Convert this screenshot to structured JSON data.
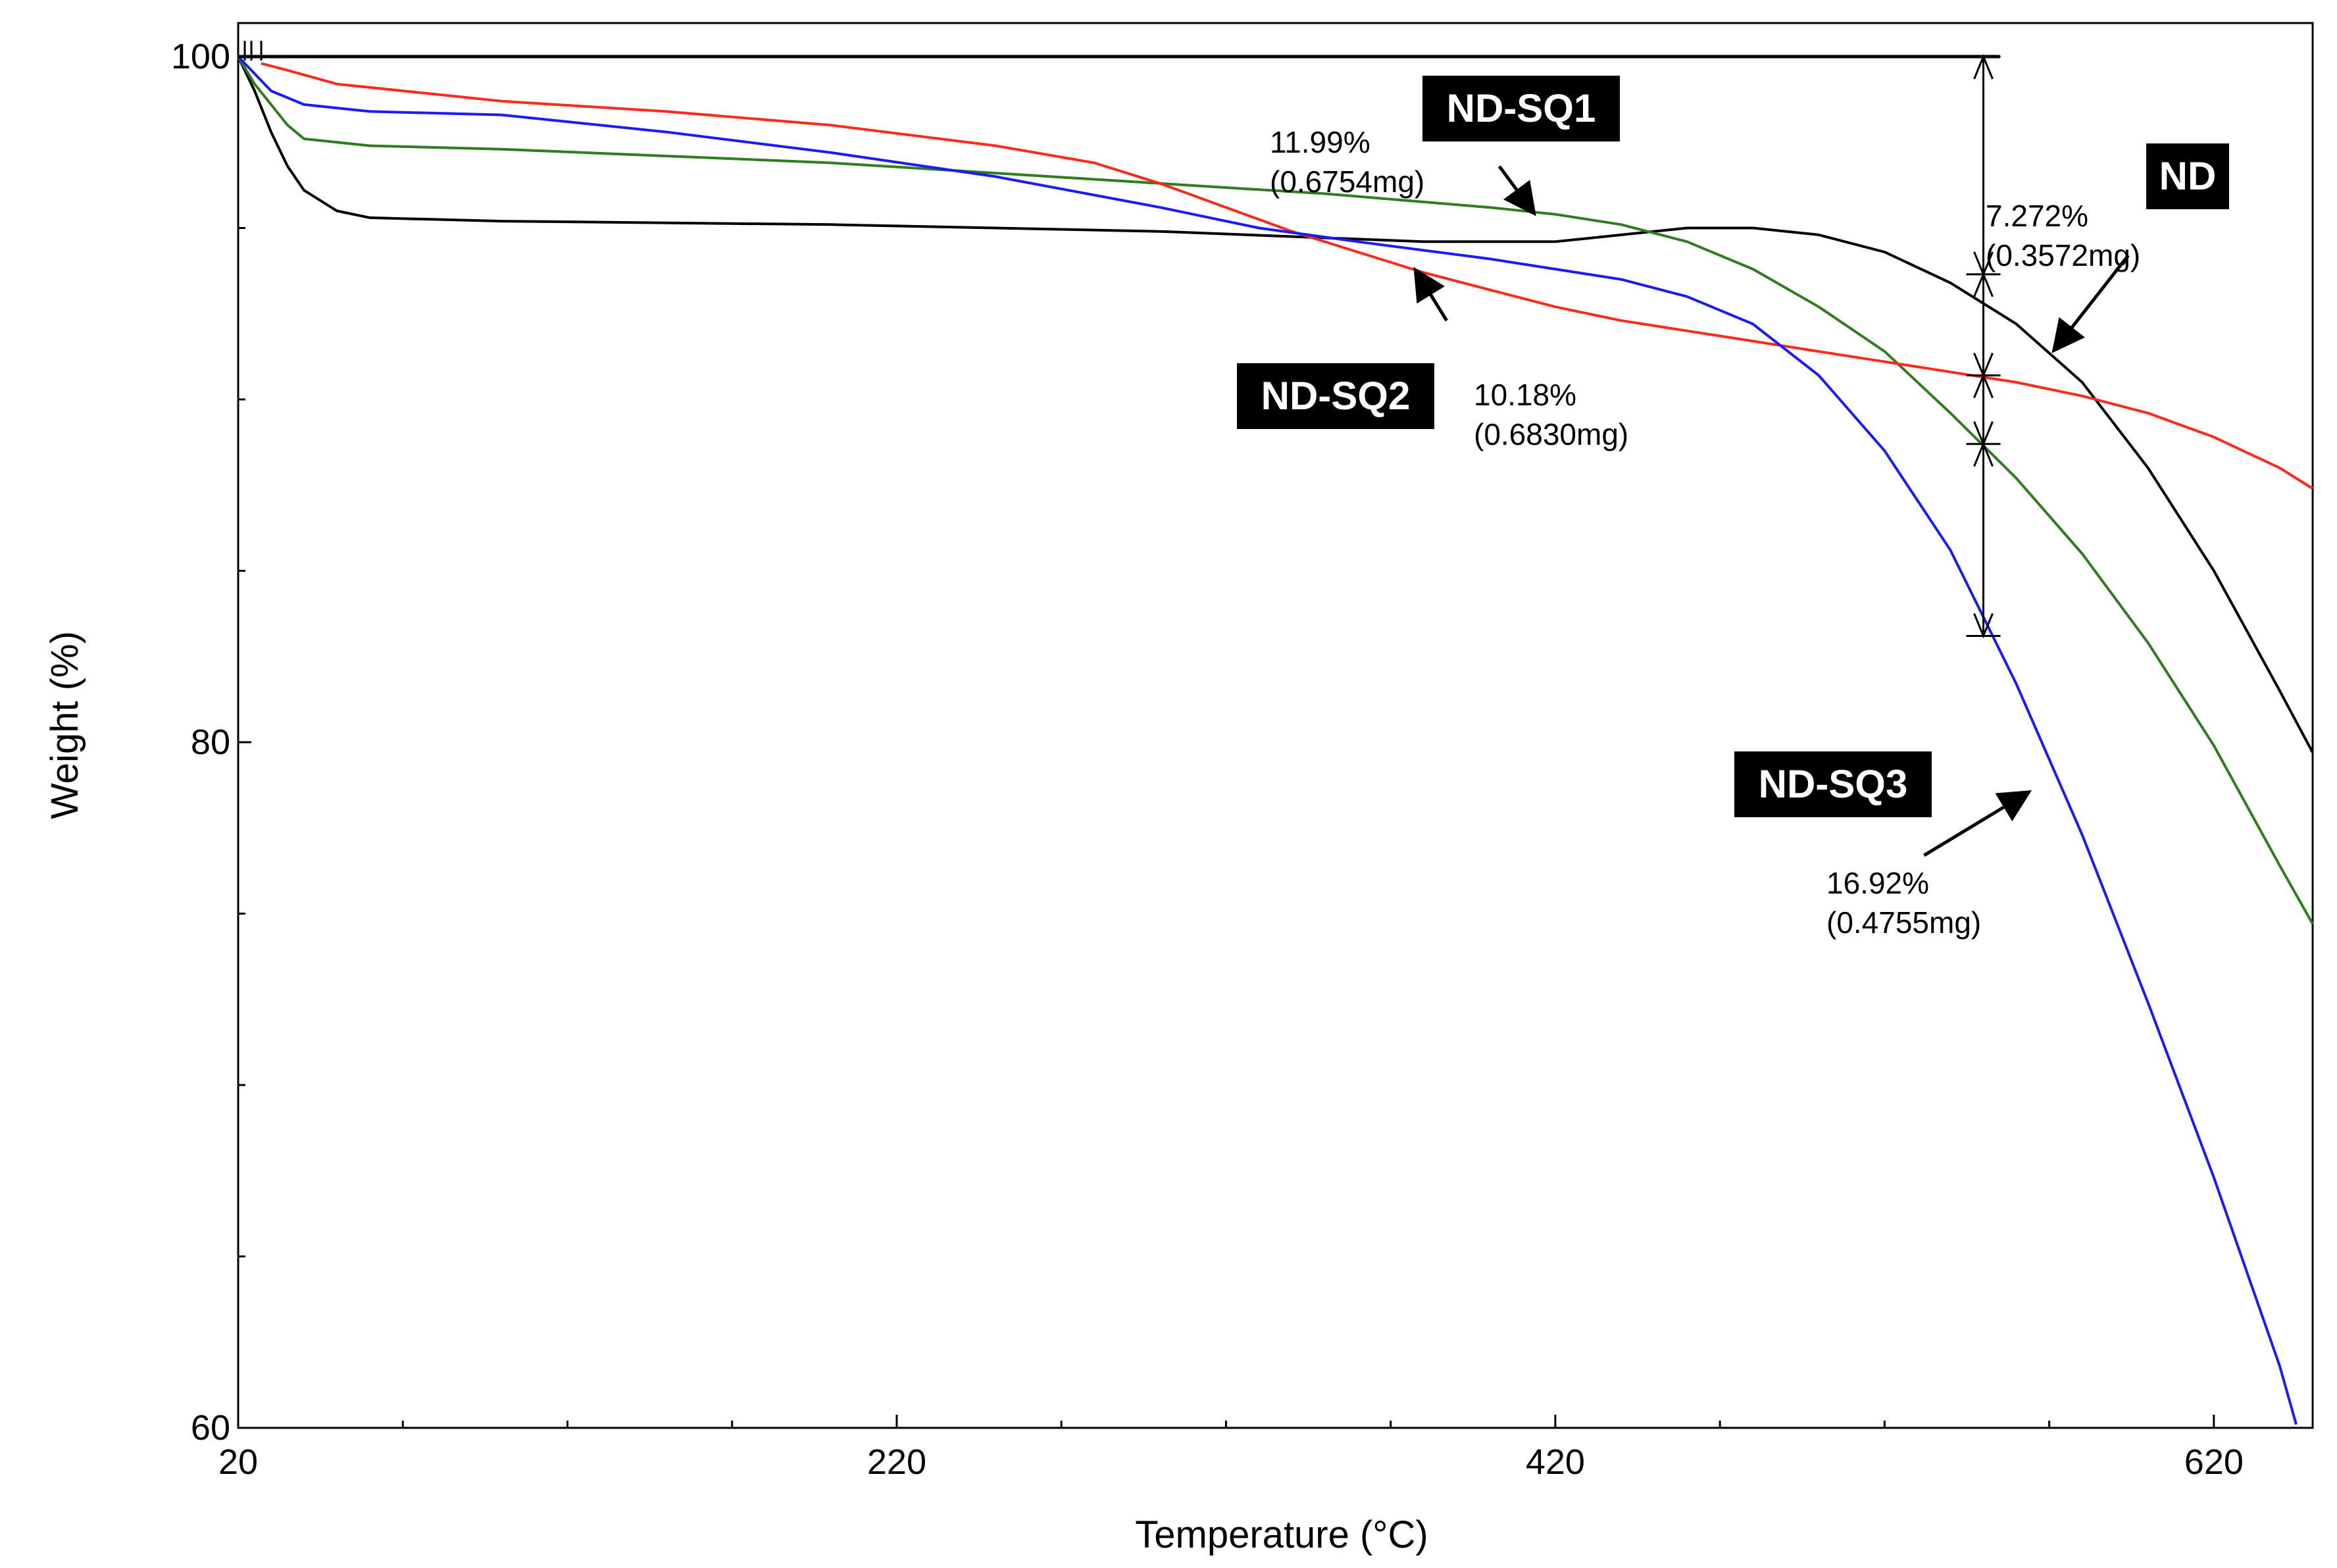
{
  "chart_data": {
    "type": "line",
    "title": "",
    "xlabel": "Temperature (°C)",
    "ylabel": "Weight (%)",
    "xlim": [
      20,
      650
    ],
    "ylim": [
      60,
      101
    ],
    "xticks": [
      20,
      220,
      420,
      620
    ],
    "yticks": [
      60,
      80,
      100
    ],
    "grid": false,
    "series": [
      {
        "name": "ND",
        "color": "#000000",
        "points": [
          [
            20,
            100
          ],
          [
            25,
            99
          ],
          [
            30,
            97.8
          ],
          [
            35,
            96.8
          ],
          [
            40,
            96.1
          ],
          [
            50,
            95.5
          ],
          [
            60,
            95.3
          ],
          [
            100,
            95.2
          ],
          [
            200,
            95.1
          ],
          [
            300,
            94.9
          ],
          [
            380,
            94.6
          ],
          [
            420,
            94.6
          ],
          [
            440,
            94.8
          ],
          [
            460,
            95
          ],
          [
            480,
            95
          ],
          [
            500,
            94.8
          ],
          [
            520,
            94.3
          ],
          [
            540,
            93.4
          ],
          [
            560,
            92.2
          ],
          [
            580,
            90.5
          ],
          [
            600,
            88
          ],
          [
            620,
            85
          ],
          [
            640,
            81.5
          ],
          [
            650,
            79.7
          ]
        ]
      },
      {
        "name": "ND-SQ1",
        "color": "#2e7d1f",
        "points": [
          [
            20,
            100
          ],
          [
            25,
            99.2
          ],
          [
            30,
            98.6
          ],
          [
            35,
            98
          ],
          [
            40,
            97.6
          ],
          [
            60,
            97.4
          ],
          [
            100,
            97.3
          ],
          [
            150,
            97.1
          ],
          [
            200,
            96.9
          ],
          [
            250,
            96.6
          ],
          [
            300,
            96.3
          ],
          [
            350,
            96
          ],
          [
            400,
            95.6
          ],
          [
            420,
            95.4
          ],
          [
            440,
            95.1
          ],
          [
            460,
            94.6
          ],
          [
            480,
            93.8
          ],
          [
            500,
            92.7
          ],
          [
            520,
            91.4
          ],
          [
            540,
            89.6
          ],
          [
            560,
            87.7
          ],
          [
            580,
            85.5
          ],
          [
            600,
            82.9
          ],
          [
            620,
            79.9
          ],
          [
            640,
            76.4
          ],
          [
            650,
            74.7
          ]
        ]
      },
      {
        "name": "ND-SQ2",
        "color": "#ff2a1a",
        "points": [
          [
            27,
            99.8
          ],
          [
            35,
            99.6
          ],
          [
            50,
            99.2
          ],
          [
            80,
            98.9
          ],
          [
            100,
            98.7
          ],
          [
            150,
            98.4
          ],
          [
            200,
            98
          ],
          [
            250,
            97.4
          ],
          [
            280,
            96.9
          ],
          [
            300,
            96.3
          ],
          [
            320,
            95.6
          ],
          [
            340,
            94.9
          ],
          [
            360,
            94.3
          ],
          [
            380,
            93.7
          ],
          [
            400,
            93.2
          ],
          [
            420,
            92.7
          ],
          [
            440,
            92.3
          ],
          [
            460,
            92
          ],
          [
            480,
            91.7
          ],
          [
            500,
            91.4
          ],
          [
            520,
            91.1
          ],
          [
            540,
            90.8
          ],
          [
            560,
            90.5
          ],
          [
            580,
            90.1
          ],
          [
            600,
            89.6
          ],
          [
            620,
            88.9
          ],
          [
            640,
            88
          ],
          [
            650,
            87.4
          ]
        ]
      },
      {
        "name": "ND-SQ3",
        "color": "#1a1aff",
        "points": [
          [
            20,
            100
          ],
          [
            25,
            99.5
          ],
          [
            30,
            99
          ],
          [
            40,
            98.6
          ],
          [
            60,
            98.4
          ],
          [
            100,
            98.3
          ],
          [
            150,
            97.8
          ],
          [
            200,
            97.2
          ],
          [
            250,
            96.5
          ],
          [
            300,
            95.6
          ],
          [
            330,
            95
          ],
          [
            360,
            94.6
          ],
          [
            400,
            94.1
          ],
          [
            440,
            93.5
          ],
          [
            460,
            93
          ],
          [
            480,
            92.2
          ],
          [
            500,
            90.7
          ],
          [
            520,
            88.5
          ],
          [
            540,
            85.6
          ],
          [
            560,
            81.7
          ],
          [
            580,
            77.3
          ],
          [
            600,
            72.4
          ],
          [
            620,
            67.3
          ],
          [
            640,
            61.8
          ],
          [
            645,
            60.1
          ]
        ]
      }
    ],
    "reference_line": {
      "y": 100,
      "x_start": 20,
      "x_end": 555,
      "color": "#000000"
    },
    "measure_line": {
      "x": 550,
      "y_values": [
        100,
        93.65,
        90.7,
        88.7,
        83.1
      ]
    },
    "annotations": [
      {
        "id": "nd",
        "label": "ND",
        "pct": "7.272%",
        "mass": "(0.3572mg)",
        "arrow_x": 572,
        "arrow_y": 91.5,
        "tail_x": 594,
        "tail_y": 94.2
      },
      {
        "id": "sq1",
        "label": "ND-SQ1",
        "pct": "11.99%",
        "mass": "(0.6754mg)",
        "arrow_x": 413,
        "arrow_y": 95.5,
        "tail_x": 403,
        "tail_y": 96.8
      },
      {
        "id": "sq2",
        "label": "ND-SQ2",
        "pct": "10.18%",
        "mass": "(0.6830mg)",
        "arrow_x": 378,
        "arrow_y": 93.7,
        "tail_x": 387,
        "tail_y": 92.3
      },
      {
        "id": "sq3",
        "label": "ND-SQ3",
        "pct": "16.92%",
        "mass": "(0.4755mg)",
        "arrow_x": 563,
        "arrow_y": 78.5,
        "tail_x": 532,
        "tail_y": 76.7
      }
    ]
  }
}
